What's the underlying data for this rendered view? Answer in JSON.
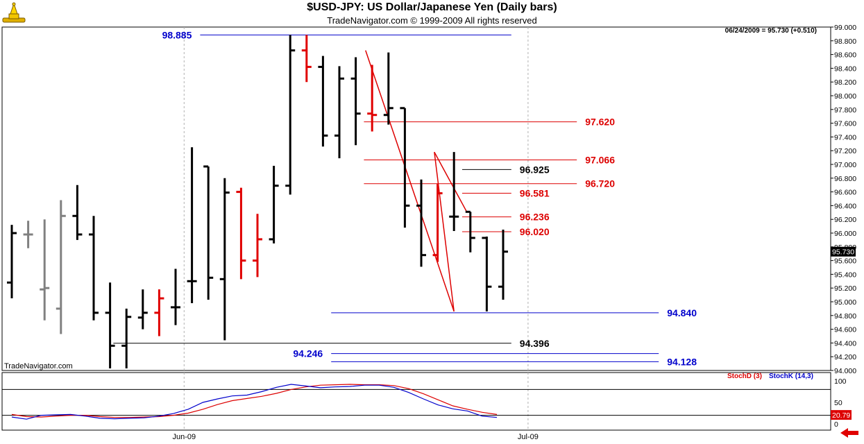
{
  "header": {
    "title": "$USD-JPY:  US Dollar/Japanese Yen  (Daily bars)",
    "subtitle": "TradeNavigator.com © 1999-2009 All rights reserved",
    "last_quote": "06/24/2009 = 95.730 (+0.510)",
    "watermark": "TradeNavigator.com",
    "price_box": "95.730",
    "stoch_box": "20.79"
  },
  "colors": {
    "up_bar": "#000000",
    "down_bar": "#e00000",
    "grey_bar": "#808080",
    "blue_level": "#0000cc",
    "red_level": "#dd0000",
    "black_level": "#000000",
    "stochD": "#dd0000",
    "stochK": "#0000cc"
  },
  "chart_data": {
    "type": "ohlc",
    "price_axis": {
      "ylim": [
        94.0,
        99.0
      ],
      "ticks": [
        "94.000",
        "94.200",
        "94.400",
        "94.600",
        "94.800",
        "95.000",
        "95.200",
        "95.400",
        "95.600",
        "95.800",
        "96.000",
        "96.200",
        "96.400",
        "96.600",
        "96.800",
        "97.000",
        "97.200",
        "97.400",
        "97.600",
        "97.800",
        "98.000",
        "98.200",
        "98.400",
        "98.600",
        "98.800",
        "99.000"
      ]
    },
    "x_labels": [
      {
        "label": "Jun-09",
        "after_bar": 11
      },
      {
        "label": "Jul-09",
        "after_bar": 32
      }
    ],
    "bars": [
      {
        "o": 95.28,
        "h": 96.12,
        "l": 95.05,
        "c": 96.0,
        "color": "black"
      },
      {
        "o": 95.98,
        "h": 96.18,
        "l": 95.78,
        "c": 95.98,
        "color": "grey"
      },
      {
        "o": 95.18,
        "h": 96.2,
        "l": 94.73,
        "c": 95.2,
        "color": "grey"
      },
      {
        "o": 94.9,
        "h": 96.48,
        "l": 94.53,
        "c": 96.25,
        "color": "grey"
      },
      {
        "o": 96.25,
        "h": 96.7,
        "l": 95.9,
        "c": 95.98,
        "color": "black"
      },
      {
        "o": 95.98,
        "h": 96.25,
        "l": 94.73,
        "c": 94.84,
        "color": "black"
      },
      {
        "o": 94.84,
        "h": 95.28,
        "l": 94.03,
        "c": 94.36,
        "color": "black"
      },
      {
        "o": 94.36,
        "h": 94.9,
        "l": 94.03,
        "c": 94.78,
        "color": "black"
      },
      {
        "o": 94.77,
        "h": 95.18,
        "l": 94.6,
        "c": 94.84,
        "color": "black"
      },
      {
        "o": 94.84,
        "h": 95.18,
        "l": 94.5,
        "c": 95.05,
        "color": "red"
      },
      {
        "o": 94.92,
        "h": 95.48,
        "l": 94.66,
        "c": 94.92,
        "color": "black"
      },
      {
        "o": 95.3,
        "h": 97.25,
        "l": 94.98,
        "c": 95.3,
        "color": "black"
      },
      {
        "o": 96.97,
        "h": 96.97,
        "l": 95.03,
        "c": 95.35,
        "color": "black"
      },
      {
        "o": 95.33,
        "h": 96.8,
        "l": 94.44,
        "c": 96.59,
        "color": "black"
      },
      {
        "o": 96.6,
        "h": 96.66,
        "l": 95.33,
        "c": 95.6,
        "color": "red"
      },
      {
        "o": 95.6,
        "h": 96.28,
        "l": 95.36,
        "c": 95.91,
        "color": "red"
      },
      {
        "o": 95.91,
        "h": 96.98,
        "l": 95.85,
        "c": 96.69,
        "color": "black"
      },
      {
        "o": 96.69,
        "h": 98.885,
        "l": 96.56,
        "c": 98.66,
        "color": "black"
      },
      {
        "o": 98.66,
        "h": 98.885,
        "l": 98.2,
        "c": 98.42,
        "color": "red"
      },
      {
        "o": 98.42,
        "h": 98.58,
        "l": 97.26,
        "c": 97.42,
        "color": "black"
      },
      {
        "o": 97.42,
        "h": 98.43,
        "l": 97.09,
        "c": 98.25,
        "color": "black"
      },
      {
        "o": 98.25,
        "h": 98.56,
        "l": 97.28,
        "c": 97.74,
        "color": "black"
      },
      {
        "o": 97.74,
        "h": 98.45,
        "l": 97.48,
        "c": 97.72,
        "color": "red"
      },
      {
        "o": 97.72,
        "h": 98.63,
        "l": 97.58,
        "c": 97.82,
        "color": "black"
      },
      {
        "o": 97.82,
        "h": 97.82,
        "l": 96.08,
        "c": 96.4,
        "color": "black"
      },
      {
        "o": 96.4,
        "h": 96.78,
        "l": 95.51,
        "c": 95.68,
        "color": "black"
      },
      {
        "o": 95.68,
        "h": 96.72,
        "l": 95.58,
        "c": 96.58,
        "color": "red"
      },
      {
        "o": 96.24,
        "h": 97.18,
        "l": 96.03,
        "c": 96.24,
        "color": "black"
      },
      {
        "o": 96.31,
        "h": 96.31,
        "l": 95.72,
        "c": 95.93,
        "color": "black"
      },
      {
        "o": 95.93,
        "h": 95.95,
        "l": 94.86,
        "c": 95.22,
        "color": "black"
      },
      {
        "o": 95.22,
        "h": 96.05,
        "l": 95.03,
        "c": 95.73,
        "color": "black"
      }
    ],
    "levels": [
      {
        "value": 98.885,
        "label": "98.885",
        "color": "blue",
        "from_bar": 11.5,
        "to_bar": 30.5,
        "label_side": "left"
      },
      {
        "value": 97.62,
        "label": "97.620",
        "color": "red",
        "from_bar": 21.5,
        "to_bar": 34.5,
        "label_side": "right"
      },
      {
        "value": 97.066,
        "label": "97.066",
        "color": "red",
        "from_bar": 21.5,
        "to_bar": 34.5,
        "label_side": "right"
      },
      {
        "value": 96.925,
        "label": "96.925",
        "color": "black",
        "from_bar": 27.5,
        "to_bar": 30.5,
        "label_side": "right"
      },
      {
        "value": 96.72,
        "label": "96.720",
        "color": "red",
        "from_bar": 21.5,
        "to_bar": 34.5,
        "label_side": "right"
      },
      {
        "value": 96.581,
        "label": "96.581",
        "color": "red",
        "from_bar": 27.5,
        "to_bar": 30.5,
        "label_side": "right"
      },
      {
        "value": 96.236,
        "label": "96.236",
        "color": "red",
        "from_bar": 27.5,
        "to_bar": 30.5,
        "label_side": "right"
      },
      {
        "value": 96.02,
        "label": "96.020",
        "color": "red",
        "from_bar": 27.5,
        "to_bar": 30.5,
        "label_side": "right"
      },
      {
        "value": 94.84,
        "label": "94.840",
        "color": "blue",
        "from_bar": 19.5,
        "to_bar": 39.5,
        "label_side": "right"
      },
      {
        "value": 94.396,
        "label": "94.396",
        "color": "black",
        "from_bar": 6.2,
        "to_bar": 30.5,
        "label_side": "right"
      },
      {
        "value": 94.246,
        "label": "94.246",
        "color": "blue",
        "from_bar": 19.5,
        "to_bar": 39.5,
        "label_side": "left"
      },
      {
        "value": 94.128,
        "label": "94.128",
        "color": "blue",
        "from_bar": 19.5,
        "to_bar": 39.5,
        "label_side": "right"
      }
    ],
    "trendlines": [
      {
        "x1": 21.6,
        "y1": 98.66,
        "x2": 27.0,
        "y2": 94.86
      },
      {
        "x1": 27.0,
        "y1": 94.86,
        "x2": 25.8,
        "y2": 97.18
      },
      {
        "x1": 25.8,
        "y1": 97.18,
        "x2": 27.8,
        "y2": 96.3
      }
    ],
    "stochastic": {
      "legend": [
        "StochD (3)",
        "StochK (14,3)"
      ],
      "ylim": [
        0,
        100
      ],
      "ticks": [
        "100",
        "50",
        "0"
      ],
      "hlines": [
        80,
        20
      ],
      "stochD": [
        22,
        17,
        16,
        18,
        20,
        20,
        17,
        15,
        15,
        16,
        17,
        20,
        25,
        34,
        45,
        54,
        59,
        64,
        71,
        80,
        86,
        90,
        91,
        92,
        91,
        91,
        89,
        82,
        70,
        56,
        42,
        34,
        27,
        22
      ],
      "stochK": [
        16,
        11,
        20,
        21,
        22,
        18,
        13,
        12,
        13,
        14,
        18,
        24,
        34,
        50,
        58,
        65,
        67,
        75,
        85,
        92,
        88,
        84,
        86,
        87,
        90,
        90,
        85,
        73,
        58,
        44,
        35,
        30,
        18,
        15
      ]
    }
  }
}
